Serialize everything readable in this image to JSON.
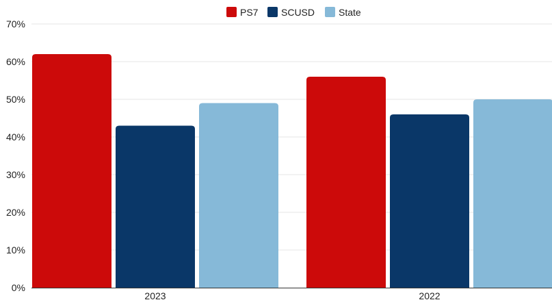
{
  "chart_data": {
    "type": "bar",
    "categories": [
      "2023",
      "2022"
    ],
    "series": [
      {
        "name": "PS7",
        "values": [
          62,
          56
        ],
        "color": "#cc0a0a"
      },
      {
        "name": "SCUSD",
        "values": [
          43,
          46
        ],
        "color": "#0a3768"
      },
      {
        "name": "State",
        "values": [
          49,
          50
        ],
        "color": "#86b9d8"
      }
    ],
    "title": "",
    "xlabel": "",
    "ylabel": "",
    "ylim": [
      0,
      70
    ],
    "y_ticks": [
      "0%",
      "10%",
      "20%",
      "30%",
      "40%",
      "50%",
      "60%",
      "70%"
    ],
    "y_tick_values": [
      0,
      10,
      20,
      30,
      40,
      50,
      60,
      70
    ],
    "grid": true,
    "legend_position": "top-center"
  }
}
